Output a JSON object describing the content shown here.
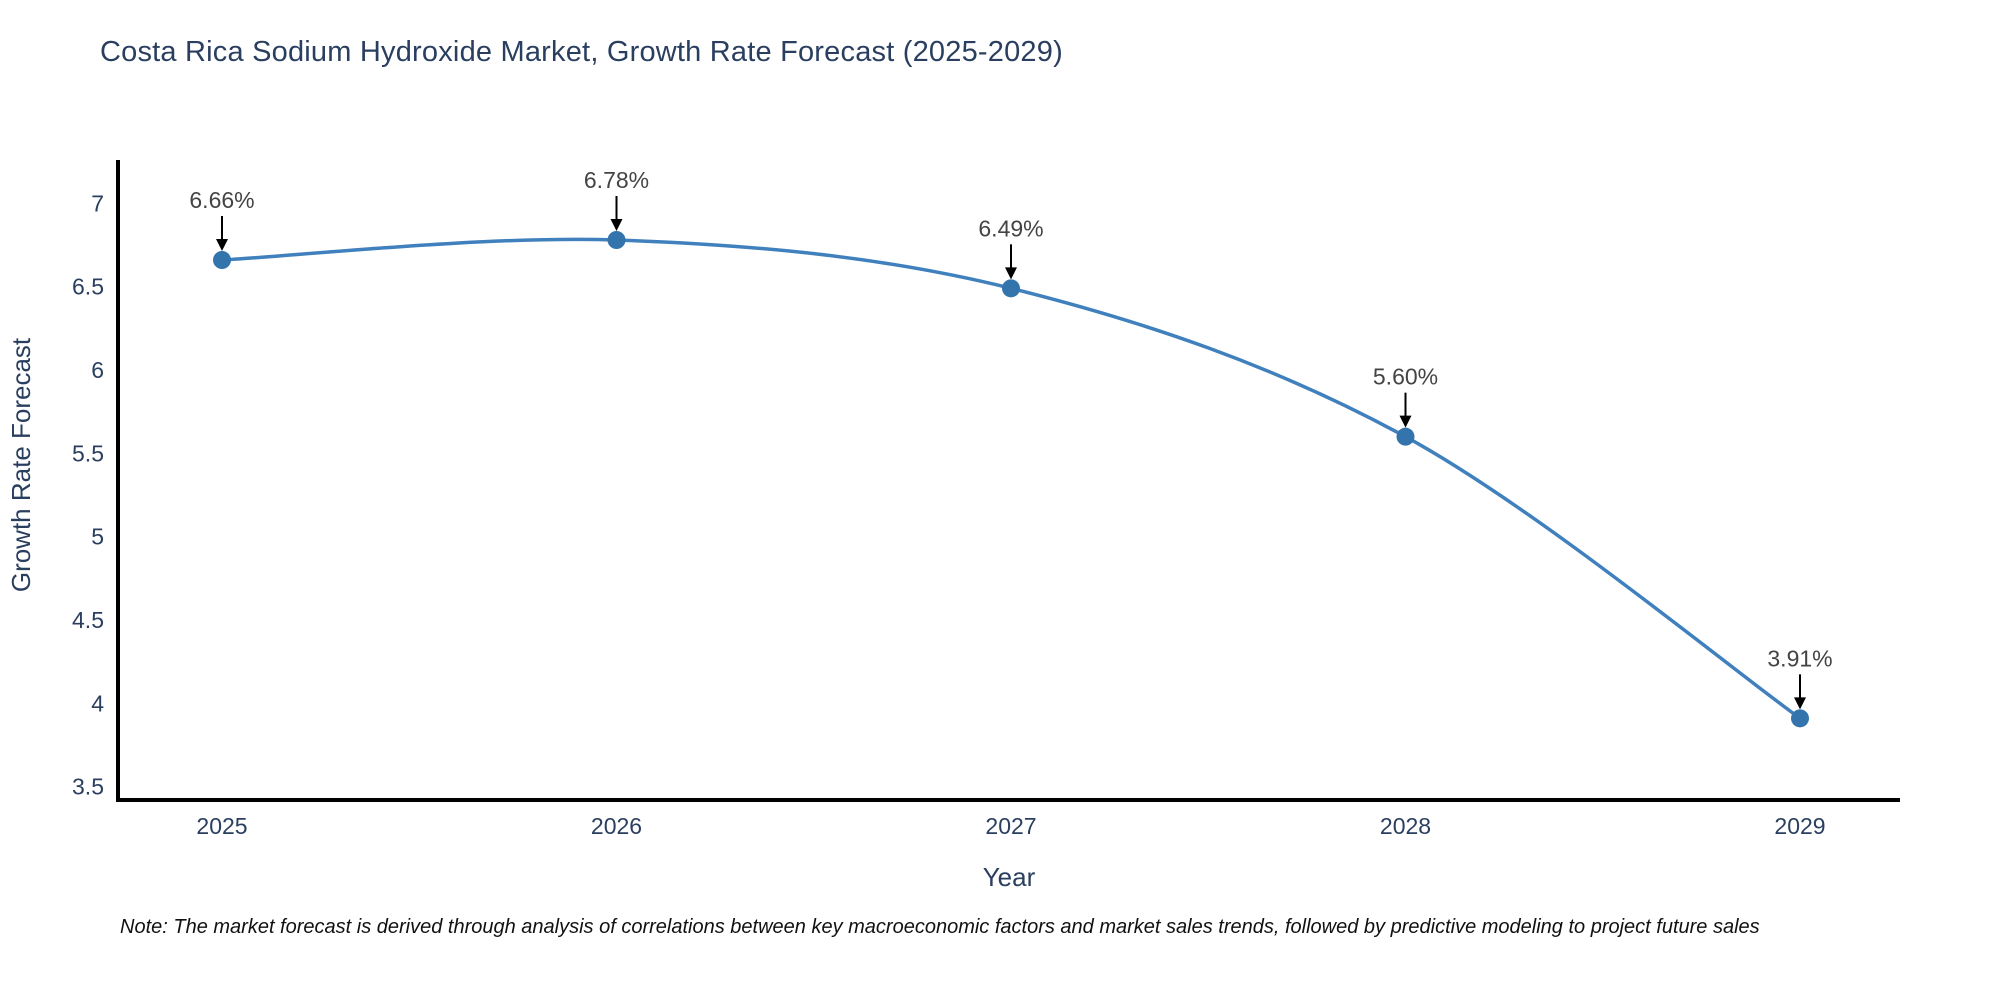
{
  "title": "Costa Rica Sodium Hydroxide Market, Growth Rate Forecast (2025-2029)",
  "note": "Note: The market forecast is derived through analysis of correlations between key macroeconomic factors and market sales trends, followed by predictive modeling to project future sales",
  "chart_data": {
    "type": "line",
    "line_shape": "spline",
    "categories": [
      "2025",
      "2026",
      "2027",
      "2028",
      "2029"
    ],
    "series": [
      {
        "name": "Growth Rate Forecast",
        "values": [
          6.66,
          6.78,
          6.49,
          5.6,
          3.91
        ]
      }
    ],
    "point_labels": [
      "6.66%",
      "6.78%",
      "6.49%",
      "5.60%",
      "3.91%"
    ],
    "xlabel": "Year",
    "ylabel": "Growth Rate Forecast",
    "yticks": [
      3.5,
      4,
      4.5,
      5,
      5.5,
      6,
      6.5,
      7
    ],
    "ytick_labels": [
      "3.5",
      "4",
      "4.5",
      "5",
      "5.5",
      "6",
      "6.5",
      "7"
    ],
    "ylim": [
      3.42,
      7.26
    ],
    "grid": false,
    "legend": "none",
    "colors": {
      "line": "#3f80bd",
      "marker": "#3374ad",
      "axis_line": "#000000",
      "tick_text": "#2a3f5f",
      "axis_title_text": "#2a3f5f",
      "annotation_text": "#444444",
      "annotation_arrow": "#000000",
      "background": "#ffffff"
    }
  }
}
